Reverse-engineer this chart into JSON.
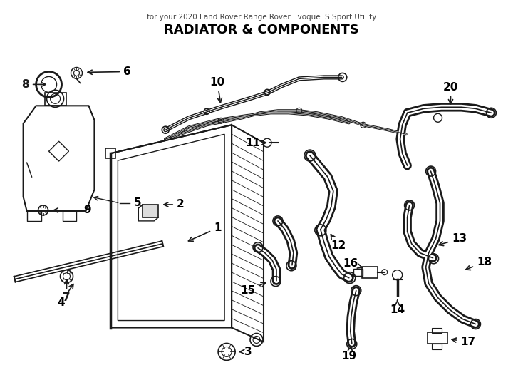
{
  "title": "RADIATOR & COMPONENTS",
  "subtitle": "for your 2020 Land Rover Range Rover Evoque  S Sport Utility",
  "bg_color": "#ffffff",
  "line_color": "#1a1a1a",
  "label_color": "#000000",
  "figsize": [
    7.34,
    5.4
  ],
  "dpi": 100
}
